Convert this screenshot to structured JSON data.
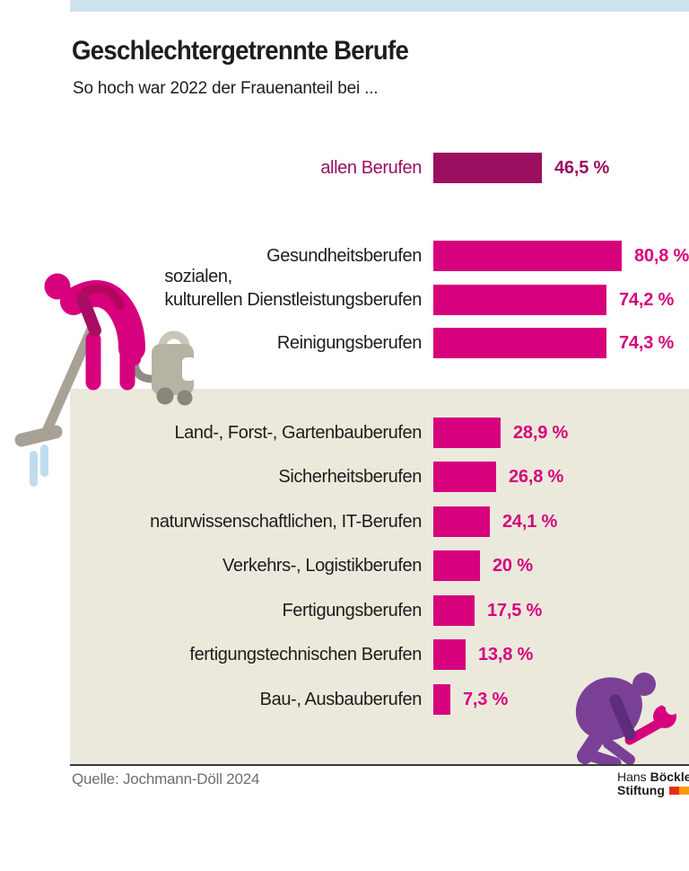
{
  "header": {
    "title": "Geschlechtergetrennte Berufe",
    "subtitle": "So hoch war 2022 der Frauenanteil bei ..."
  },
  "chart_data": {
    "type": "bar",
    "orientation": "horizontal",
    "unit": "%",
    "xlim": [
      0,
      100
    ],
    "title": "Geschlechtergetrennte Berufe",
    "subtitle": "So hoch war 2022 der Frauenanteil bei ...",
    "categories": [
      "allen Berufen",
      "Gesundheitsberufen",
      "sozialen, kulturellen Dienstleistungsberufen",
      "Reinigungsberufen",
      "Land-, Forst-, Gartenbauberufen",
      "Sicherheitsberufen",
      "naturwissenschaftlichen, IT-Berufen",
      "Verkehrs-, Logistikberufen",
      "Fertigungsberufen",
      "fertigungstechnischen Berufen",
      "Bau-, Ausbauberufen"
    ],
    "values": [
      46.5,
      80.8,
      74.2,
      74.3,
      28.9,
      26.8,
      24.1,
      20,
      17.5,
      13.8,
      7.3
    ],
    "rows": [
      {
        "label_lines": [
          "allen Berufen"
        ],
        "value": 46.5,
        "display": "46,5 %",
        "emphasis": "dark"
      },
      {
        "label_lines": [
          "Gesundheitsberufen"
        ],
        "value": 80.8,
        "display": "80,8 %",
        "emphasis": "bright"
      },
      {
        "label_lines": [
          "sozialen,",
          "kulturellen Dienstleistungsberufen"
        ],
        "value": 74.2,
        "display": "74,2 %",
        "emphasis": "bright"
      },
      {
        "label_lines": [
          "Reinigungsberufen"
        ],
        "value": 74.3,
        "display": "74,3 %",
        "emphasis": "bright"
      },
      {
        "label_lines": [
          "Land-, Forst-, Gartenbauberufen"
        ],
        "value": 28.9,
        "display": "28,9 %",
        "emphasis": "bright"
      },
      {
        "label_lines": [
          "Sicherheitsberufen"
        ],
        "value": 26.8,
        "display": "26,8 %",
        "emphasis": "bright"
      },
      {
        "label_lines": [
          "naturwissenschaftlichen, IT-Berufen"
        ],
        "value": 24.1,
        "display": "24,1 %",
        "emphasis": "bright"
      },
      {
        "label_lines": [
          "Verkehrs-, Logistikberufen"
        ],
        "value": 20,
        "display": "20 %",
        "emphasis": "bright"
      },
      {
        "label_lines": [
          "Fertigungsberufen"
        ],
        "value": 17.5,
        "display": "17,5 %",
        "emphasis": "bright"
      },
      {
        "label_lines": [
          "fertigungstechnischen Berufen"
        ],
        "value": 13.8,
        "display": "13,8 %",
        "emphasis": "bright"
      },
      {
        "label_lines": [
          "Bau-, Ausbauberufen"
        ],
        "value": 7.3,
        "display": "7,3 %",
        "emphasis": "bright"
      }
    ]
  },
  "colors": {
    "bar_bright": "#d7017d",
    "bar_dark": "#9b0f60",
    "panel_beige": "#ebe9dc",
    "accent_blue": "#cde3ed",
    "text_dark": "#1d1d1b",
    "source_gray": "#6f6e6e",
    "logo_red": "#e53012",
    "logo_orange": "#f59b00",
    "illustration_purple": "#7a4096",
    "illustration_gray": "#aaa698",
    "illustration_lightblue": "#bedded"
  },
  "footer": {
    "source": "Quelle: Jochmann-Döll 2024",
    "logo": {
      "name_regular": "Hans ",
      "name_bold": "Böckler",
      "line2_bold": "Stiftung"
    }
  },
  "illustrations": [
    {
      "name": "cleaning-person-with-vacuum"
    },
    {
      "name": "crouching-worker-with-wrench"
    }
  ]
}
